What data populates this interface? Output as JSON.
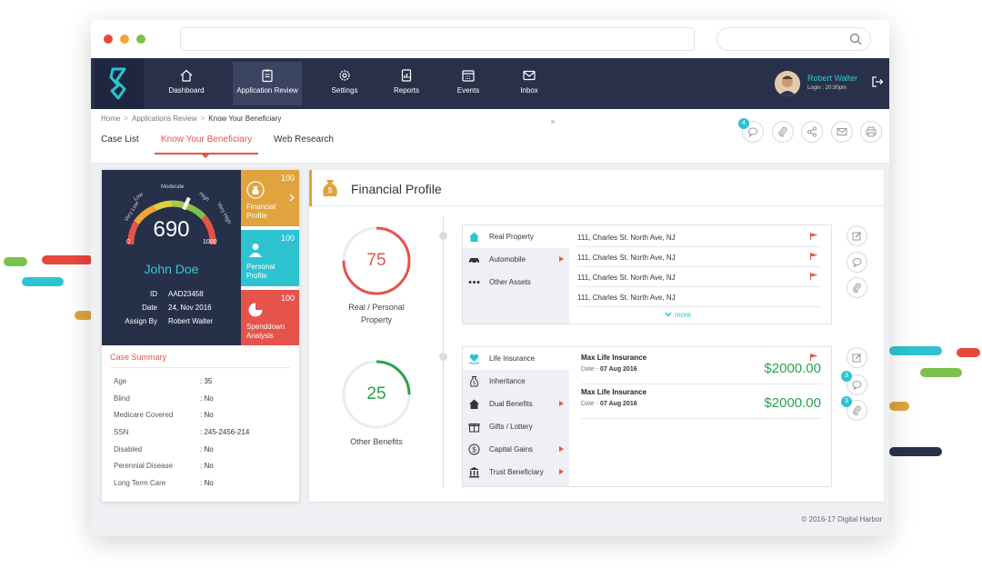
{
  "colors": {
    "accent_red": "#e5534b",
    "teal": "#2dc3d0",
    "navy": "#283149",
    "gold": "#e0a33e",
    "green": "#2ba14a"
  },
  "window": {
    "traffic_lights": [
      "#e8473e",
      "#f1a53a",
      "#7cc24a"
    ]
  },
  "nav": {
    "items": [
      {
        "label": "Dashboard",
        "icon": "home-icon"
      },
      {
        "label": "Application Review",
        "icon": "clipboard-icon",
        "active": true
      },
      {
        "label": "Settings",
        "icon": "gear-icon"
      },
      {
        "label": "Reports",
        "icon": "report-icon"
      },
      {
        "label": "Events",
        "icon": "calendar-icon"
      },
      {
        "label": "Inbox",
        "icon": "mail-icon"
      }
    ],
    "user": {
      "name": "Robert Walter",
      "login": "Login : 20:30pm"
    }
  },
  "breadcrumb": [
    "Home",
    "Applications Review",
    "Know Your Beneficiary"
  ],
  "tabs": [
    "Case List",
    "Know Your Beneficiary",
    "Web Research"
  ],
  "toolbar": {
    "comment_badge": "4"
  },
  "profile": {
    "score": "690",
    "gauge_labels": {
      "min": "0",
      "max": "1000",
      "low": "Low",
      "very_low": "Very Low",
      "moderate": "Moderate",
      "high": "High",
      "very_high": "Very High"
    },
    "name": "John Doe",
    "id_label": "ID",
    "id_value": "AAD23458",
    "date_label": "Date",
    "date_value": "24, Nov 2016",
    "assign_label": "Assign By",
    "assign_value": "Robert Walter",
    "tiles": [
      {
        "label1": "Financial",
        "label2": "Profile",
        "value": "100"
      },
      {
        "label1": "Personal",
        "label2": "Profile",
        "value": "100"
      },
      {
        "label1": "Spenddown",
        "label2": "Analysis",
        "value": "100"
      }
    ]
  },
  "case_summary": {
    "title": "Case Summary",
    "rows": [
      {
        "k": "Age",
        "v": ": 35"
      },
      {
        "k": "Blind",
        "v": ": No"
      },
      {
        "k": "Medicare Covered",
        "v": ": No"
      },
      {
        "k": "SSN",
        "v": ": 245-2456-214"
      },
      {
        "k": "Disabled",
        "v": ": No"
      },
      {
        "k": "Perennial Disease",
        "v": ": No"
      },
      {
        "k": "Long Term Care",
        "v": ": No"
      }
    ]
  },
  "financial": {
    "title": "Financial Profile",
    "rings": [
      {
        "value": "75",
        "fraction": 0.75,
        "label1": "Real / Personal",
        "label2": "Property",
        "color": "#e5534b"
      },
      {
        "value": "25",
        "fraction": 0.25,
        "label1": "Other Benefits",
        "label2": "",
        "color": "#2ba14a"
      }
    ],
    "property_menu": [
      {
        "label": "Real Property",
        "icon": "house-icon",
        "active": true,
        "arrow": false
      },
      {
        "label": "Automobile",
        "icon": "car-icon",
        "active": false,
        "arrow": true
      },
      {
        "label": "Other Assets",
        "icon": "dots-icon",
        "active": false,
        "arrow": false
      }
    ],
    "addresses": [
      "111, Charles St. North Ave, NJ",
      "111, Charles St. North Ave, NJ",
      "111, Charles St. North Ave, NJ",
      "111, Charles St. North Ave, NJ"
    ],
    "more": "more",
    "benefit_menu": [
      {
        "label": "Life Insurance",
        "icon": "heart-hand-icon",
        "active": true,
        "arrow": false
      },
      {
        "label": "Inheritance",
        "icon": "money-bag-icon",
        "active": false,
        "arrow": false
      },
      {
        "label": "Dual Benefits",
        "icon": "house-icon",
        "active": false,
        "arrow": true
      },
      {
        "label": "Gifts / Lottery",
        "icon": "gift-icon",
        "active": false,
        "arrow": false
      },
      {
        "label": "Capital Gains",
        "icon": "dollar-icon",
        "active": false,
        "arrow": true
      },
      {
        "label": "Trust Beneficiary",
        "icon": "bank-icon",
        "active": false,
        "arrow": true
      }
    ],
    "benefits": [
      {
        "title": "Max Life Insurance",
        "date_label": "Date -",
        "date": "07 Aug 2016",
        "amount": "$2000.00"
      },
      {
        "title": "Max Life Insurance",
        "date_label": "Date -",
        "date": "07 Aug 2016",
        "amount": "$2000.00"
      }
    ],
    "side_badges": [
      "3",
      "3"
    ]
  },
  "footer": "© 2016-17  Digital Harbor"
}
